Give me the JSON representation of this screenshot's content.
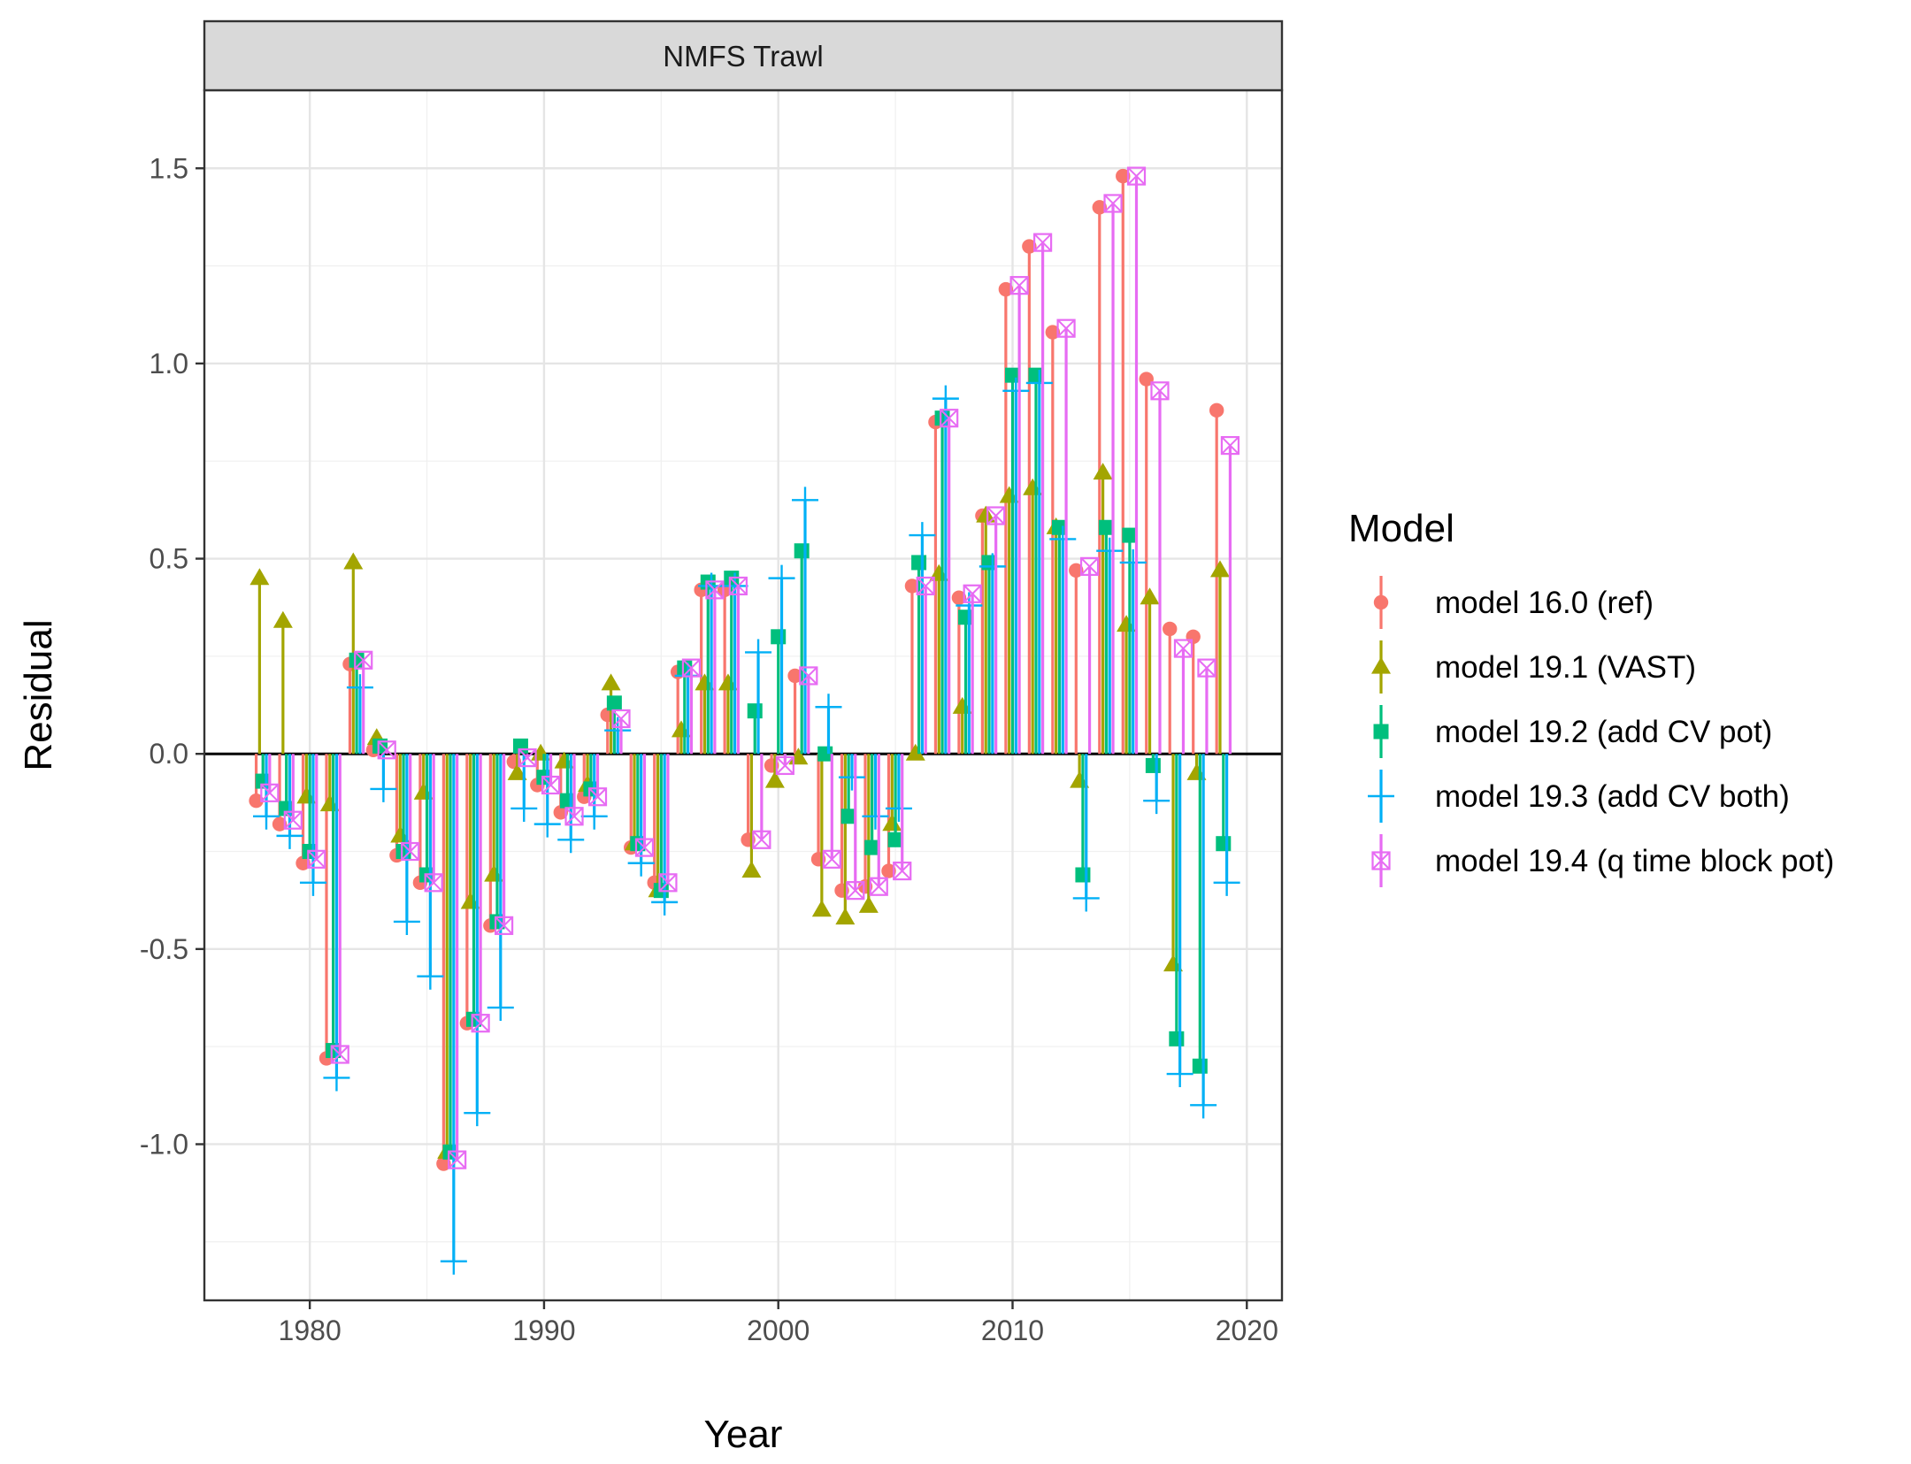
{
  "chart_data": {
    "type": "scatter",
    "facet_title": "NMFS Trawl",
    "xlabel": "Year",
    "ylabel": "Residual",
    "xlim": [
      1975.5,
      2021.5
    ],
    "ylim": [
      -1.4,
      1.7
    ],
    "x_ticks": [
      1980,
      1990,
      2000,
      2010,
      2020
    ],
    "x_tick_labels": [
      "1980",
      "1990",
      "2000",
      "2010",
      "2020"
    ],
    "y_ticks": [
      -1.0,
      -0.5,
      0.0,
      0.5,
      1.0,
      1.5
    ],
    "y_tick_labels": [
      "-1.0",
      "-0.5",
      "0.0",
      "0.5",
      "1.0",
      "1.5"
    ],
    "grid": true,
    "zero_line": 0,
    "legend": {
      "title": "Model",
      "position": "right"
    },
    "years": [
      1978,
      1979,
      1980,
      1981,
      1982,
      1983,
      1984,
      1985,
      1986,
      1987,
      1988,
      1989,
      1990,
      1991,
      1992,
      1993,
      1994,
      1995,
      1996,
      1997,
      1998,
      1999,
      2000,
      2001,
      2002,
      2003,
      2004,
      2005,
      2006,
      2007,
      2008,
      2009,
      2010,
      2011,
      2012,
      2013,
      2014,
      2015,
      2016,
      2017,
      2018,
      2019
    ],
    "series": [
      {
        "name": "model 16.0 (ref)",
        "color": "#F8766D",
        "marker": "circle",
        "values": [
          -0.12,
          -0.18,
          -0.28,
          -0.78,
          0.23,
          0.01,
          -0.26,
          -0.33,
          -1.05,
          -0.69,
          -0.44,
          -0.02,
          -0.08,
          -0.15,
          -0.11,
          0.1,
          -0.24,
          -0.33,
          0.21,
          0.42,
          0.42,
          -0.22,
          -0.03,
          0.2,
          -0.27,
          -0.35,
          -0.34,
          -0.3,
          0.43,
          0.85,
          0.4,
          0.61,
          1.19,
          1.3,
          1.08,
          0.47,
          1.4,
          1.48,
          0.96,
          0.32,
          0.3,
          0.88
        ]
      },
      {
        "name": "model 19.1 (VAST)",
        "color": "#A3A500",
        "marker": "triangle",
        "values": [
          0.45,
          0.34,
          -0.11,
          -0.13,
          0.49,
          0.04,
          -0.21,
          -0.1,
          -1.02,
          -0.38,
          -0.31,
          -0.05,
          0.0,
          -0.02,
          -0.08,
          0.18,
          -0.23,
          -0.35,
          0.06,
          0.18,
          0.18,
          -0.3,
          -0.07,
          -0.01,
          -0.4,
          -0.42,
          -0.39,
          -0.18,
          0.0,
          0.46,
          0.12,
          0.61,
          0.66,
          0.68,
          0.58,
          -0.07,
          0.72,
          0.33,
          0.4,
          -0.54,
          -0.05,
          0.47
        ]
      },
      {
        "name": "model 19.2 (add CV pot)",
        "color": "#00BF7D",
        "marker": "square",
        "values": [
          -0.07,
          -0.14,
          -0.25,
          -0.76,
          0.24,
          0.02,
          -0.25,
          -0.31,
          -1.02,
          -0.68,
          -0.43,
          0.02,
          -0.06,
          -0.12,
          -0.09,
          0.13,
          -0.23,
          -0.35,
          0.22,
          0.44,
          0.45,
          0.11,
          0.3,
          0.52,
          0.0,
          -0.16,
          -0.24,
          -0.22,
          0.49,
          0.86,
          0.35,
          0.49,
          0.97,
          0.97,
          0.58,
          -0.31,
          0.58,
          0.56,
          -0.03,
          -0.73,
          -0.8,
          -0.23
        ]
      },
      {
        "name": "model 19.3 (add CV both)",
        "color": "#00B0F6",
        "marker": "plus",
        "values": [
          -0.16,
          -0.21,
          -0.33,
          -0.83,
          0.17,
          -0.09,
          -0.43,
          -0.57,
          -1.3,
          -0.92,
          -0.65,
          -0.14,
          -0.18,
          -0.22,
          -0.16,
          0.06,
          -0.28,
          -0.38,
          0.2,
          0.43,
          0.43,
          0.26,
          0.45,
          0.65,
          0.12,
          -0.06,
          -0.16,
          -0.14,
          0.56,
          0.91,
          0.38,
          0.48,
          0.93,
          0.95,
          0.55,
          -0.37,
          0.52,
          0.49,
          -0.12,
          -0.82,
          -0.9,
          -0.33
        ]
      },
      {
        "name": "model 19.4 (q time block pot)",
        "color": "#E76BF3",
        "marker": "boxx",
        "values": [
          -0.1,
          -0.17,
          -0.27,
          -0.77,
          0.24,
          0.01,
          -0.25,
          -0.33,
          -1.04,
          -0.69,
          -0.44,
          -0.01,
          -0.08,
          -0.16,
          -0.11,
          0.09,
          -0.24,
          -0.33,
          0.22,
          0.42,
          0.43,
          -0.22,
          -0.03,
          0.2,
          -0.27,
          -0.35,
          -0.34,
          -0.3,
          0.43,
          0.86,
          0.41,
          0.61,
          1.2,
          1.31,
          1.09,
          0.48,
          1.41,
          1.48,
          0.93,
          0.27,
          0.22,
          0.79
        ]
      }
    ]
  }
}
